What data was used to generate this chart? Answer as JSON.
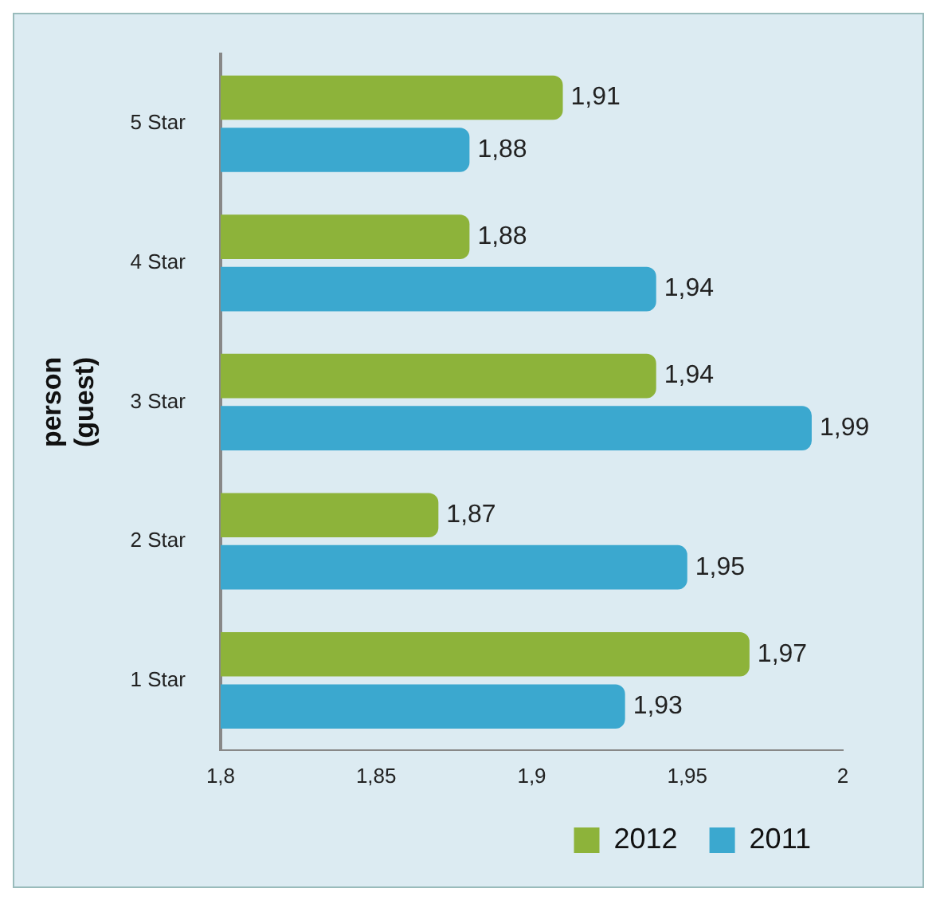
{
  "chart_data": {
    "type": "bar",
    "orientation": "horizontal",
    "ylabel": "person (guest)",
    "categories": [
      "5 Star",
      "4 Star",
      "3 Star",
      "2 Star",
      "1 Star"
    ],
    "series": [
      {
        "name": "2012",
        "color": "#8db33a",
        "values": [
          1.91,
          1.88,
          1.94,
          1.87,
          1.97
        ],
        "value_labels": [
          "1,91",
          "1,88",
          "1,94",
          "1,87",
          "1,97"
        ]
      },
      {
        "name": "2011",
        "color": "#3ba8cf",
        "values": [
          1.88,
          1.94,
          1.99,
          1.95,
          1.93
        ],
        "value_labels": [
          "1,88",
          "1,94",
          "1,99",
          "1,95",
          "1,93"
        ]
      }
    ],
    "xlim": [
      1.8,
      2
    ],
    "xticks": [
      {
        "value": 1.8,
        "label": "1,8"
      },
      {
        "value": 1.85,
        "label": "1,85"
      },
      {
        "value": 1.9,
        "label": "1,9"
      },
      {
        "value": 1.95,
        "label": "1,95"
      },
      {
        "value": 2,
        "label": "2"
      }
    ],
    "grid": false,
    "legend": "bottom right"
  }
}
